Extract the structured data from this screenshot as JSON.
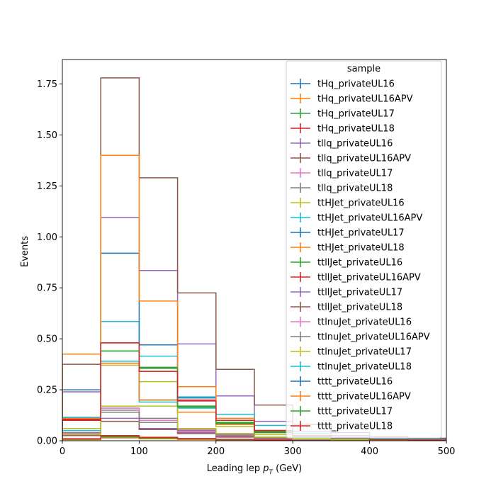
{
  "chart_data": {
    "type": "step-histogram",
    "xlabel": "Leading lep",
    "xlabel_sub": "T",
    "xlabel_unit": " (GeV)",
    "ylabel": "Events",
    "xlim": [
      0,
      500
    ],
    "ylim": [
      0,
      1.87
    ],
    "x_ticks": [
      0,
      100,
      200,
      300,
      400,
      500
    ],
    "y_ticks": [
      0.0,
      0.25,
      0.5,
      0.75,
      1.0,
      1.25,
      1.5,
      1.75
    ],
    "bin_edges": [
      0,
      50,
      100,
      150,
      200,
      250,
      300,
      350,
      400,
      450,
      500
    ],
    "legend": {
      "title": "sample",
      "placement": "top-right"
    },
    "series": [
      {
        "name": "tHq_privateUL16",
        "color": "#1f77b4",
        "values": [
          0.006,
          0.015,
          0.01,
          0.007,
          0.004,
          0.002,
          0.001,
          0.001,
          0.0005,
          0.0003
        ]
      },
      {
        "name": "tHq_privateUL16APV",
        "color": "#ff7f0e",
        "values": [
          0.005,
          0.014,
          0.009,
          0.006,
          0.004,
          0.002,
          0.001,
          0.0008,
          0.0004,
          0.0002
        ]
      },
      {
        "name": "tHq_privateUL17",
        "color": "#2ca02c",
        "values": [
          0.008,
          0.02,
          0.013,
          0.009,
          0.005,
          0.003,
          0.0015,
          0.001,
          0.0006,
          0.0003
        ]
      },
      {
        "name": "tHq_privateUL18",
        "color": "#d62728",
        "values": [
          0.01,
          0.025,
          0.017,
          0.011,
          0.007,
          0.004,
          0.002,
          0.0012,
          0.0007,
          0.0004
        ]
      },
      {
        "name": "tllq_privateUL16",
        "color": "#9467bd",
        "values": [
          0.03,
          0.11,
          0.06,
          0.04,
          0.02,
          0.01,
          0.005,
          0.003,
          0.002,
          0.001
        ]
      },
      {
        "name": "tllq_privateUL16APV",
        "color": "#8c564b",
        "values": [
          0.025,
          0.095,
          0.055,
          0.035,
          0.018,
          0.009,
          0.004,
          0.003,
          0.0015,
          0.001
        ]
      },
      {
        "name": "tllq_privateUL17",
        "color": "#e377c2",
        "values": [
          0.035,
          0.16,
          0.1,
          0.045,
          0.025,
          0.012,
          0.006,
          0.004,
          0.002,
          0.001
        ]
      },
      {
        "name": "tllq_privateUL18",
        "color": "#7f7f7f",
        "values": [
          0.04,
          0.15,
          0.11,
          0.06,
          0.035,
          0.015,
          0.008,
          0.005,
          0.003,
          0.0015
        ]
      },
      {
        "name": "ttHJet_privateUL16",
        "color": "#bcbd22",
        "values": [
          0.06,
          0.37,
          0.29,
          0.14,
          0.07,
          0.03,
          0.015,
          0.008,
          0.005,
          0.003
        ]
      },
      {
        "name": "ttHJet_privateUL16APV",
        "color": "#17becf",
        "values": [
          0.05,
          0.39,
          0.19,
          0.16,
          0.09,
          0.045,
          0.02,
          0.01,
          0.006,
          0.004
        ]
      },
      {
        "name": "ttHJet_privateUL17",
        "color": "#1f77b4",
        "values": [
          0.11,
          0.38,
          0.2,
          0.14,
          0.08,
          0.04,
          0.02,
          0.01,
          0.006,
          0.003
        ]
      },
      {
        "name": "ttHJet_privateUL18",
        "color": "#ff7f0e",
        "values": [
          0.11,
          0.38,
          0.2,
          0.14,
          0.08,
          0.04,
          0.02,
          0.01,
          0.006,
          0.003
        ]
      },
      {
        "name": "ttllJet_privateUL16",
        "color": "#2ca02c",
        "values": [
          0.1,
          0.44,
          0.36,
          0.17,
          0.09,
          0.045,
          0.025,
          0.012,
          0.007,
          0.004
        ]
      },
      {
        "name": "ttllJet_privateUL16APV",
        "color": "#d62728",
        "values": [
          0.105,
          0.48,
          0.34,
          0.2,
          0.1,
          0.05,
          0.025,
          0.014,
          0.008,
          0.005
        ]
      },
      {
        "name": "ttllJet_privateUL17",
        "color": "#9467bd",
        "values": [
          0.24,
          1.095,
          0.835,
          0.475,
          0.22,
          0.095,
          0.045,
          0.025,
          0.013,
          0.008
        ]
      },
      {
        "name": "ttllJet_privateUL18",
        "color": "#8c564b",
        "values": [
          0.375,
          1.78,
          1.29,
          0.725,
          0.35,
          0.175,
          0.08,
          0.04,
          0.02,
          0.012
        ]
      },
      {
        "name": "ttlnuJet_privateUL16",
        "color": "#e377c2",
        "values": [
          0.03,
          0.16,
          0.1,
          0.055,
          0.03,
          0.015,
          0.008,
          0.004,
          0.002,
          0.001
        ]
      },
      {
        "name": "ttlnuJet_privateUL16APV",
        "color": "#7f7f7f",
        "values": [
          0.03,
          0.14,
          0.09,
          0.05,
          0.028,
          0.014,
          0.007,
          0.004,
          0.002,
          0.001
        ]
      },
      {
        "name": "ttlnuJet_privateUL17",
        "color": "#bcbd22",
        "values": [
          0.03,
          0.17,
          0.17,
          0.06,
          0.035,
          0.018,
          0.009,
          0.005,
          0.002,
          0.001
        ]
      },
      {
        "name": "ttlnuJet_privateUL18",
        "color": "#17becf",
        "values": [
          0.115,
          0.585,
          0.415,
          0.215,
          0.13,
          0.075,
          0.035,
          0.018,
          0.01,
          0.006
        ]
      },
      {
        "name": "tttt_privateUL16",
        "color": "#1f77b4",
        "values": [
          0.25,
          0.92,
          0.47,
          0.21,
          0.1,
          0.05,
          0.025,
          0.012,
          0.006,
          0.003
        ]
      },
      {
        "name": "tttt_privateUL16APV",
        "color": "#ff7f0e",
        "values": [
          0.425,
          1.4,
          0.685,
          0.265,
          0.11,
          0.05,
          0.025,
          0.012,
          0.006,
          0.003
        ]
      },
      {
        "name": "tttt_privateUL17",
        "color": "#2ca02c",
        "values": [
          0.1,
          0.44,
          0.355,
          0.165,
          0.085,
          0.04,
          0.02,
          0.01,
          0.005,
          0.003
        ]
      },
      {
        "name": "tttt_privateUL18",
        "color": "#d62728",
        "values": [
          0.1,
          0.48,
          0.34,
          0.195,
          0.1,
          0.05,
          0.025,
          0.012,
          0.006,
          0.003
        ]
      }
    ]
  }
}
